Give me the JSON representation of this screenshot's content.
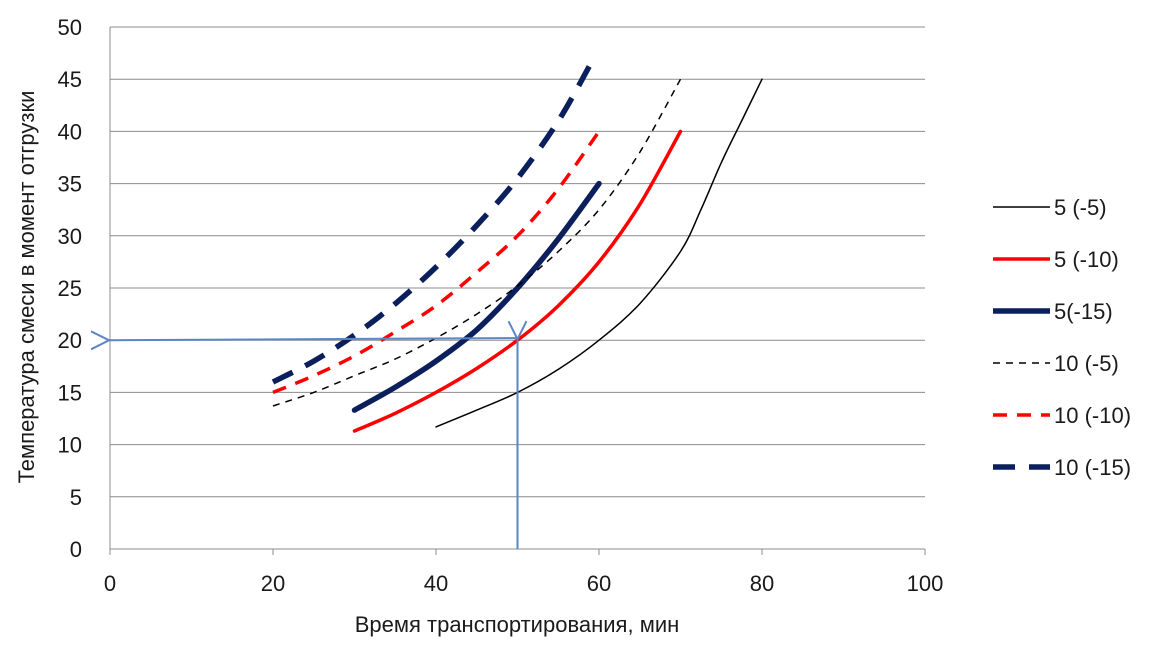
{
  "chart_data": {
    "type": "line",
    "title": "",
    "xlabel": "Время транспортирования, мин",
    "ylabel": "Температура смеси в момент отгрузки",
    "xlim": [
      0,
      100
    ],
    "ylim": [
      0,
      50
    ],
    "x_ticks": [
      "0",
      "20",
      "40",
      "60",
      "80",
      "100"
    ],
    "y_ticks": [
      "0",
      "5",
      "10",
      "15",
      "20",
      "25",
      "30",
      "35",
      "40",
      "45",
      "50"
    ],
    "grid": "horizontal",
    "legend_position": "right",
    "series": [
      {
        "name": "5 (-5)",
        "color": "#000000",
        "style": "solid",
        "width": "thin",
        "points": [
          [
            40,
            11.7
          ],
          [
            45,
            13.3
          ],
          [
            50,
            15.0
          ],
          [
            55,
            17.2
          ],
          [
            60,
            20.0
          ],
          [
            65,
            23.5
          ],
          [
            70,
            28.5
          ],
          [
            72.5,
            32.5
          ],
          [
            75,
            37.0
          ],
          [
            77.5,
            41.0
          ],
          [
            80,
            45.0
          ]
        ]
      },
      {
        "name": "5 (-10)",
        "color": "#ff0000",
        "style": "solid",
        "width": "medium",
        "points": [
          [
            30,
            11.3
          ],
          [
            35,
            13.0
          ],
          [
            40,
            15.0
          ],
          [
            45,
            17.3
          ],
          [
            50,
            20.0
          ],
          [
            55,
            23.3
          ],
          [
            60,
            27.5
          ],
          [
            65,
            33.0
          ],
          [
            70,
            40.0
          ]
        ]
      },
      {
        "name": "5(-15)",
        "color": "#0a1f5c",
        "style": "solid",
        "width": "thick",
        "points": [
          [
            30,
            13.3
          ],
          [
            35,
            15.5
          ],
          [
            40,
            18.0
          ],
          [
            45,
            21.0
          ],
          [
            50,
            25.0
          ],
          [
            55,
            29.7
          ],
          [
            60,
            35.0
          ]
        ]
      },
      {
        "name": "10 (-5)",
        "color": "#000000",
        "style": "dashed",
        "width": "thin",
        "points": [
          [
            20,
            13.7
          ],
          [
            25,
            15.0
          ],
          [
            30,
            16.6
          ],
          [
            35,
            18.2
          ],
          [
            40,
            20.2
          ],
          [
            45,
            22.5
          ],
          [
            50,
            25.2
          ],
          [
            55,
            28.5
          ],
          [
            60,
            32.5
          ],
          [
            65,
            38.0
          ],
          [
            70,
            45.0
          ]
        ]
      },
      {
        "name": "10 (-10)",
        "color": "#ff0000",
        "style": "dashed",
        "width": "medium",
        "points": [
          [
            20,
            15.0
          ],
          [
            25,
            16.6
          ],
          [
            30,
            18.5
          ],
          [
            35,
            20.8
          ],
          [
            40,
            23.3
          ],
          [
            45,
            26.5
          ],
          [
            50,
            30.0
          ],
          [
            55,
            34.5
          ],
          [
            60,
            40.0
          ]
        ]
      },
      {
        "name": "10 (-15)",
        "color": "#0a1f5c",
        "style": "dashed",
        "width": "thick",
        "points": [
          [
            20,
            16.0
          ],
          [
            25,
            18.0
          ],
          [
            30,
            20.5
          ],
          [
            35,
            23.5
          ],
          [
            40,
            27.0
          ],
          [
            45,
            31.0
          ],
          [
            50,
            35.5
          ],
          [
            55,
            41.0
          ],
          [
            59,
            46.5
          ]
        ]
      }
    ],
    "annotations": [
      {
        "type": "arrow",
        "color": "#5b86c2",
        "from": [
          50,
          0
        ],
        "to": [
          50,
          20
        ]
      },
      {
        "type": "arrow",
        "color": "#5b86c2",
        "from": [
          50,
          20.2
        ],
        "to": [
          0,
          20
        ]
      }
    ]
  }
}
